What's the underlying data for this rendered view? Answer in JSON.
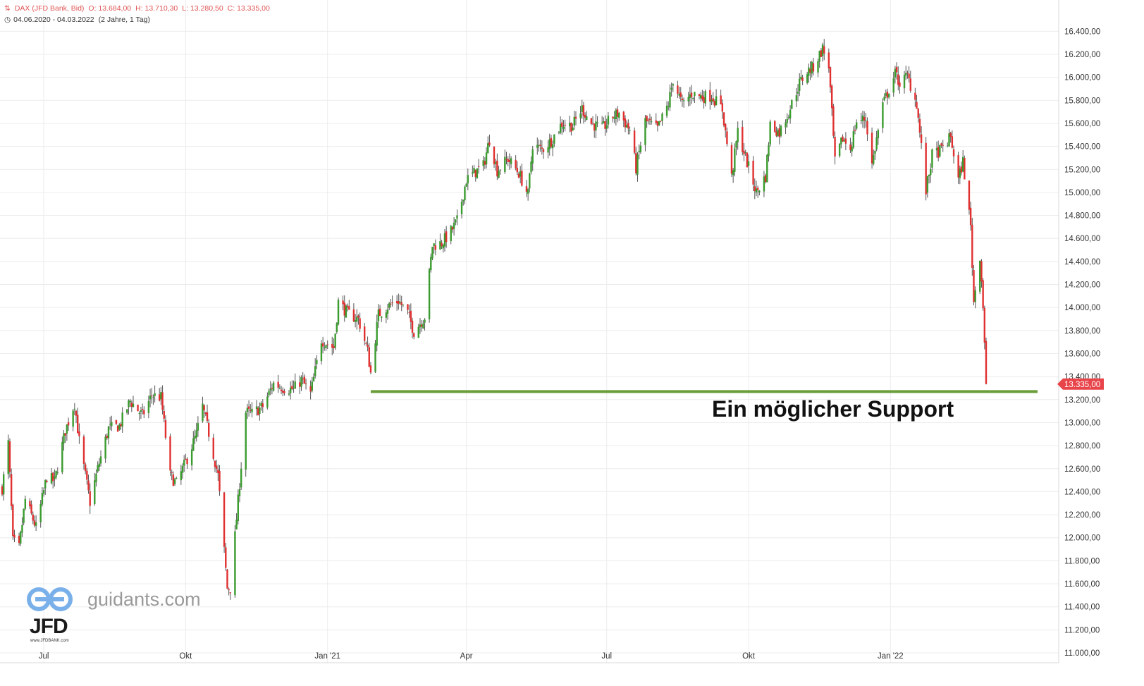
{
  "header": {
    "instrument": "DAX (JFD Bank, Bid)",
    "open": "O: 13.684,00",
    "high": "H: 13.710,30",
    "low": "L: 13.280,50",
    "close": "C: 13.335,00",
    "range": "04.06.2020 - 04.03.2022",
    "span": "(2 Jahre, 1 Tag)"
  },
  "annotation": "Ein möglicher Support",
  "watermark": {
    "site": "guidants.com",
    "brand": "JFD",
    "brand_sub": "www.JFDBANK.com"
  },
  "colors": {
    "up": "#3a9b2e",
    "down": "#e03030",
    "support": "#6a9e3a",
    "last_price_bg": "#e8454b",
    "grid": "#ececec"
  },
  "chart_data": {
    "type": "candlestick",
    "ylim": [
      11000,
      16500
    ],
    "yticks": [
      11000,
      11200,
      11400,
      11600,
      11800,
      12000,
      12200,
      12400,
      12600,
      12800,
      13000,
      13200,
      13400,
      13600,
      13800,
      14000,
      14200,
      14400,
      14600,
      14800,
      15000,
      15200,
      15400,
      15600,
      15800,
      16000,
      16200,
      16400
    ],
    "ytick_labels": [
      "11.000,00",
      "11.200,00",
      "11.400,00",
      "11.600,00",
      "11.800,00",
      "12.000,00",
      "12.200,00",
      "12.400,00",
      "12.600,00",
      "12.800,00",
      "13.000,00",
      "13.200,00",
      "13.400,00",
      "13.600,00",
      "13.800,00",
      "14.000,00",
      "14.200,00",
      "14.400,00",
      "14.600,00",
      "14.800,00",
      "15.000,00",
      "15.200,00",
      "15.400,00",
      "15.600,00",
      "15.800,00",
      "16.000,00",
      "16.200,00",
      "16.400,00"
    ],
    "x_range": [
      "2020-06-04",
      "2022-03-04"
    ],
    "xticks": [
      {
        "date": "2020-07-01",
        "label": "Jul"
      },
      {
        "date": "2020-10-01",
        "label": "Okt"
      },
      {
        "date": "2021-01-01",
        "label": "Jan '21"
      },
      {
        "date": "2021-04-01",
        "label": "Apr"
      },
      {
        "date": "2021-07-01",
        "label": "Jul"
      },
      {
        "date": "2021-10-01",
        "label": "Okt"
      },
      {
        "date": "2022-01-01",
        "label": "Jan '22"
      }
    ],
    "last_price": 13335,
    "last_price_label": "13.335,00",
    "support_level": 13270,
    "support_start": "2021-01-29",
    "close_path": [
      [
        "2020-06-04",
        12430
      ],
      [
        "2020-06-08",
        12820
      ],
      [
        "2020-06-11",
        11970
      ],
      [
        "2020-06-15",
        11910
      ],
      [
        "2020-06-19",
        12330
      ],
      [
        "2020-06-26",
        12090
      ],
      [
        "2020-07-03",
        12530
      ],
      [
        "2020-07-08",
        12490
      ],
      [
        "2020-07-15",
        12930
      ],
      [
        "2020-07-21",
        13170
      ],
      [
        "2020-07-24",
        12840
      ],
      [
        "2020-07-31",
        12310
      ],
      [
        "2020-08-05",
        12600
      ],
      [
        "2020-08-12",
        12950
      ],
      [
        "2020-08-19",
        12970
      ],
      [
        "2020-08-26",
        13190
      ],
      [
        "2020-09-03",
        13060
      ],
      [
        "2020-09-09",
        13240
      ],
      [
        "2020-09-15",
        13220
      ],
      [
        "2020-09-21",
        12540
      ],
      [
        "2020-09-25",
        12470
      ],
      [
        "2020-10-02",
        12690
      ],
      [
        "2020-10-08",
        12900
      ],
      [
        "2020-10-12",
        13140
      ],
      [
        "2020-10-16",
        12910
      ],
      [
        "2020-10-22",
        12540
      ],
      [
        "2020-10-28",
        11560
      ],
      [
        "2020-10-30",
        11560
      ],
      [
        "2020-11-04",
        12320
      ],
      [
        "2020-11-09",
        13090
      ],
      [
        "2020-11-13",
        13080
      ],
      [
        "2020-11-20",
        13140
      ],
      [
        "2020-11-27",
        13340
      ],
      [
        "2020-12-04",
        13300
      ],
      [
        "2020-12-10",
        13290
      ],
      [
        "2020-12-15",
        13370
      ],
      [
        "2020-12-21",
        13250
      ],
      [
        "2020-12-28",
        13720
      ],
      [
        "2021-01-05",
        13650
      ],
      [
        "2021-01-08",
        14050
      ],
      [
        "2021-01-14",
        13950
      ],
      [
        "2021-01-21",
        13900
      ],
      [
        "2021-01-27",
        13620
      ],
      [
        "2021-01-29",
        13430
      ],
      [
        "2021-02-03",
        13940
      ],
      [
        "2021-02-09",
        14010
      ],
      [
        "2021-02-16",
        14060
      ],
      [
        "2021-02-22",
        13950
      ],
      [
        "2021-02-26",
        13790
      ],
      [
        "2021-03-05",
        13920
      ],
      [
        "2021-03-10",
        14540
      ],
      [
        "2021-03-16",
        14560
      ],
      [
        "2021-03-22",
        14660
      ],
      [
        "2021-03-26",
        14750
      ],
      [
        "2021-04-01",
        15110
      ],
      [
        "2021-04-07",
        15180
      ],
      [
        "2021-04-12",
        15230
      ],
      [
        "2021-04-16",
        15460
      ],
      [
        "2021-04-21",
        15190
      ],
      [
        "2021-04-28",
        15290
      ],
      [
        "2021-05-05",
        15170
      ],
      [
        "2021-05-11",
        14980
      ],
      [
        "2021-05-14",
        15420
      ],
      [
        "2021-05-20",
        15370
      ],
      [
        "2021-05-26",
        15450
      ],
      [
        "2021-06-02",
        15600
      ],
      [
        "2021-06-09",
        15580
      ],
      [
        "2021-06-15",
        15730
      ],
      [
        "2021-06-21",
        15600
      ],
      [
        "2021-06-28",
        15550
      ],
      [
        "2021-07-05",
        15660
      ],
      [
        "2021-07-09",
        15690
      ],
      [
        "2021-07-16",
        15540
      ],
      [
        "2021-07-20",
        15210
      ],
      [
        "2021-07-26",
        15620
      ],
      [
        "2021-08-03",
        15550
      ],
      [
        "2021-08-10",
        15770
      ],
      [
        "2021-08-13",
        15980
      ],
      [
        "2021-08-19",
        15760
      ],
      [
        "2021-08-25",
        15860
      ],
      [
        "2021-09-01",
        15830
      ],
      [
        "2021-09-07",
        15840
      ],
      [
        "2021-09-14",
        15720
      ],
      [
        "2021-09-20",
        15130
      ],
      [
        "2021-09-24",
        15530
      ],
      [
        "2021-09-30",
        15260
      ],
      [
        "2021-10-06",
        15000
      ],
      [
        "2021-10-12",
        15140
      ],
      [
        "2021-10-15",
        15590
      ],
      [
        "2021-10-21",
        15520
      ],
      [
        "2021-10-27",
        15700
      ],
      [
        "2021-11-03",
        15950
      ],
      [
        "2021-11-08",
        16050
      ],
      [
        "2021-11-12",
        16090
      ],
      [
        "2021-11-18",
        16250
      ],
      [
        "2021-11-22",
        16100
      ],
      [
        "2021-11-26",
        15260
      ],
      [
        "2021-12-01",
        15470
      ],
      [
        "2021-12-06",
        15380
      ],
      [
        "2021-12-10",
        15620
      ],
      [
        "2021-12-16",
        15640
      ],
      [
        "2021-12-20",
        15240
      ],
      [
        "2021-12-27",
        15760
      ],
      [
        "2022-01-04",
        16030
      ],
      [
        "2022-01-07",
        15950
      ],
      [
        "2022-01-12",
        16010
      ],
      [
        "2022-01-18",
        15770
      ],
      [
        "2022-01-24",
        15010
      ],
      [
        "2022-01-28",
        15320
      ],
      [
        "2022-02-03",
        15370
      ],
      [
        "2022-02-09",
        15480
      ],
      [
        "2022-02-14",
        15110
      ],
      [
        "2022-02-17",
        15270
      ],
      [
        "2022-02-22",
        14700
      ],
      [
        "2022-02-24",
        14050
      ],
      [
        "2022-02-28",
        14460
      ],
      [
        "2022-03-02",
        14020
      ],
      [
        "2022-03-03",
        13700
      ],
      [
        "2022-03-04",
        13335
      ]
    ]
  }
}
